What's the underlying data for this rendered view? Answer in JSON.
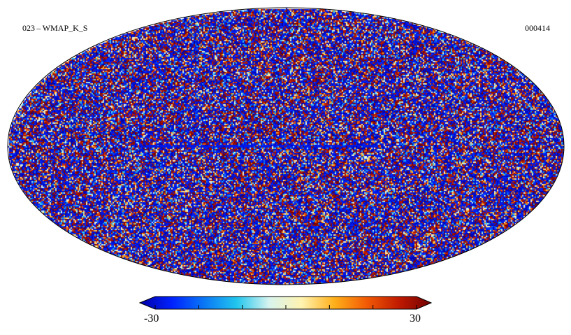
{
  "map": {
    "title": "023 – WMAP_K_S",
    "index": "000414",
    "projection": "mollweide",
    "colormap": [
      "#0000a8",
      "#0022ff",
      "#0a78f5",
      "#22c6ee",
      "#d8f4ee",
      "#fff3b0",
      "#ffb01a",
      "#f25a05",
      "#c01a00",
      "#700000"
    ]
  },
  "colorbar": {
    "min_label": "-30",
    "max_label": "30",
    "range": [
      -30,
      30
    ],
    "tick_count": 7
  }
}
